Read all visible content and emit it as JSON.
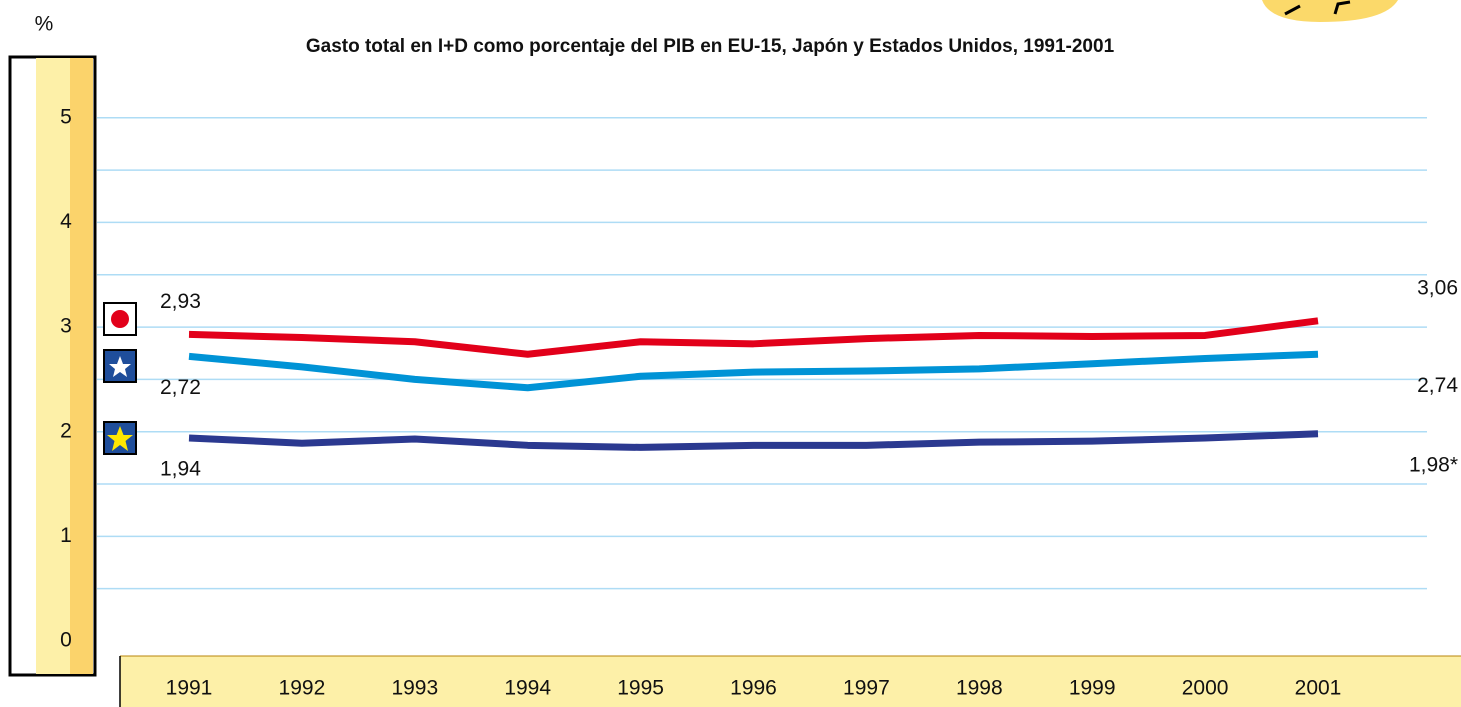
{
  "chart_data": {
    "type": "line",
    "title": "Gasto total en I+D como porcentaje del PIB en EU-15, Japón y Estados Unidos, 1991-2001",
    "y_label": "%",
    "categories": [
      "1991",
      "1992",
      "1993",
      "1994",
      "1995",
      "1996",
      "1997",
      "1998",
      "1999",
      "2000",
      "2001"
    ],
    "series": [
      {
        "color": "#e2001a",
        "values": [
          2.93,
          2.9,
          2.86,
          2.74,
          2.86,
          2.84,
          2.89,
          2.92,
          2.91,
          2.92,
          3.06
        ],
        "value_labels": [
          "2,93",
          null,
          null,
          null,
          null,
          null,
          null,
          null,
          null,
          null,
          "3,06"
        ]
      },
      {
        "color": "#0093d6",
        "values": [
          2.72,
          2.62,
          2.5,
          2.42,
          2.53,
          2.57,
          2.58,
          2.6,
          2.65,
          2.7,
          2.74
        ],
        "value_labels": [
          "2,72",
          null,
          null,
          null,
          null,
          null,
          null,
          null,
          null,
          null,
          "2,74"
        ]
      },
      {
        "color": "#2b3990",
        "values": [
          1.94,
          1.89,
          1.93,
          1.87,
          1.85,
          1.87,
          1.87,
          1.9,
          1.91,
          1.94,
          1.98
        ],
        "value_labels": [
          "1,94",
          null,
          null,
          null,
          null,
          null,
          null,
          null,
          null,
          null,
          "1,98*"
        ]
      }
    ],
    "ylim": [
      0,
      5.6
    ],
    "yticks": [
      0,
      1,
      2,
      3,
      4,
      5
    ],
    "grid": true
  }
}
